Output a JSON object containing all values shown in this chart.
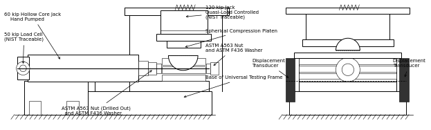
{
  "bg_color": "#ffffff",
  "ann_fs": 5.0,
  "labels": {
    "hollow_core_jack": "60 kip Hollow Core Jack\n    Hand Pumped",
    "load_cell": "50 kip Load Cell\n(NIST Traceable)",
    "jack_120": "120 kip Jack\nQuasi-Load Controlled\n(NIST Traceable)",
    "comp_platen": "Spherical Compression Platen",
    "nut_washer_top": "ASTM A563 Nut\nand ASTM F436 Washer",
    "base": "Base of Universal Testing Frame",
    "nut_washer_bot": "ASTM A563 Nut (Drilled Out)\nand ASTM F436 Washer",
    "disp_left": "Displacement\nTransducer",
    "disp_right": "Displacement\nTransducer"
  }
}
